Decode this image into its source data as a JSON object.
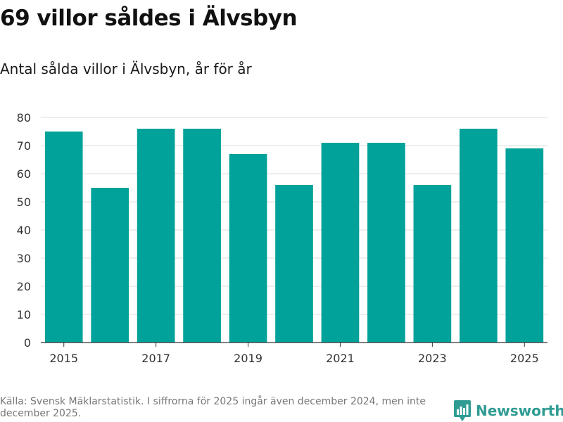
{
  "header": {
    "title": "69 villor såldes i Älvsbyn",
    "subtitle": "Antal sålda villor i Älvsbyn, år för år"
  },
  "footer": {
    "source": "Källa: Svensk Mäklarstatistik. I siffrorna för 2025 ingår även december 2024, men inte december 2025.",
    "brand": "Newsworthy",
    "brand_icon": "bar-chart-logo-icon"
  },
  "colors": {
    "bar": "#00a29a",
    "grid": "#dddddd",
    "axis": "#333333",
    "brand": "#2f9c93"
  },
  "chart_data": {
    "type": "bar",
    "title": "69 villor såldes i Älvsbyn",
    "subtitle": "Antal sålda villor i Älvsbyn, år för år",
    "xlabel": "",
    "ylabel": "",
    "categories": [
      "2015",
      "2016",
      "2017",
      "2018",
      "2019",
      "2020",
      "2021",
      "2022",
      "2023",
      "2024",
      "2025"
    ],
    "values": [
      75,
      55,
      76,
      76,
      67,
      56,
      71,
      71,
      56,
      76,
      69
    ],
    "x_tick_labels": [
      "2015",
      "2017",
      "2019",
      "2021",
      "2023",
      "2025"
    ],
    "ylim": [
      0,
      80
    ],
    "y_ticks": [
      0,
      10,
      20,
      30,
      40,
      50,
      60,
      70,
      80
    ],
    "grid": true,
    "legend": "none"
  }
}
